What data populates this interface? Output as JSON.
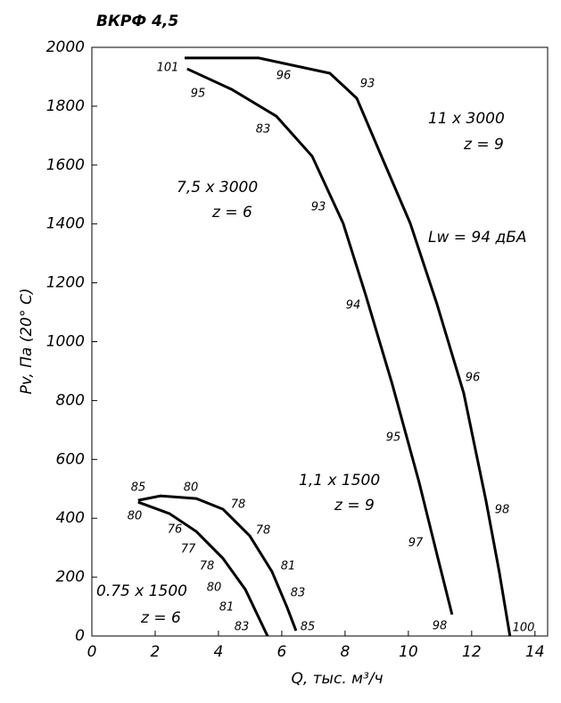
{
  "chart_data": {
    "type": "line",
    "title": "ВКРФ 4,5",
    "x_label": "Q, тыс. м³/ч",
    "y_label": "Pv, Па (20° C)",
    "xlim": [
      0,
      14.4
    ],
    "xticks": [
      0,
      2,
      4,
      6,
      8,
      10,
      12,
      14
    ],
    "ylim": [
      0,
      2000
    ],
    "yticks": [
      0,
      200,
      400,
      600,
      800,
      1000,
      1200,
      1400,
      1600,
      1800,
      2000
    ],
    "color": "#000000",
    "series": [
      {
        "name": "11 x 3000",
        "note": "z = 9",
        "x": [
          2.93,
          5.27,
          7.52,
          8.37,
          9.21,
          10.06,
          10.9,
          11.75,
          12.45,
          12.87,
          13.21
        ],
        "values": [
          1964,
          1964,
          1912,
          1827,
          1615,
          1402,
          1129,
          825,
          461,
          219,
          0
        ]
      },
      {
        "name": "7,5 x 3000",
        "note": "z = 6",
        "x": [
          3.01,
          4.42,
          5.83,
          6.96,
          7.94,
          8.65,
          9.49,
          10.34,
          10.9,
          11.38
        ],
        "values": [
          1927,
          1857,
          1766,
          1630,
          1402,
          1159,
          856,
          522,
          279,
          73
        ]
      },
      {
        "name": "1,1 x 1500",
        "note": "z = 9",
        "x": [
          1.46,
          2.17,
          3.3,
          4.14,
          4.99,
          5.69,
          6.17,
          6.45
        ],
        "values": [
          461,
          476,
          467,
          431,
          340,
          219,
          97,
          18
        ]
      },
      {
        "name": "0.75 x 1500",
        "note": "z = 6",
        "x": [
          1.46,
          2.45,
          3.3,
          4.14,
          4.85,
          5.55
        ],
        "values": [
          455,
          416,
          355,
          264,
          158,
          0
        ]
      }
    ],
    "sound_label": "Lw = 94 дБА",
    "annotations": [
      "101",
      "96",
      "93",
      "95",
      "83",
      "93",
      "94",
      "96",
      "95",
      "97",
      "98",
      "98",
      "100",
      "85",
      "80",
      "78",
      "80",
      "76",
      "78",
      "77",
      "81",
      "78",
      "80",
      "83",
      "81",
      "85",
      "83"
    ]
  }
}
